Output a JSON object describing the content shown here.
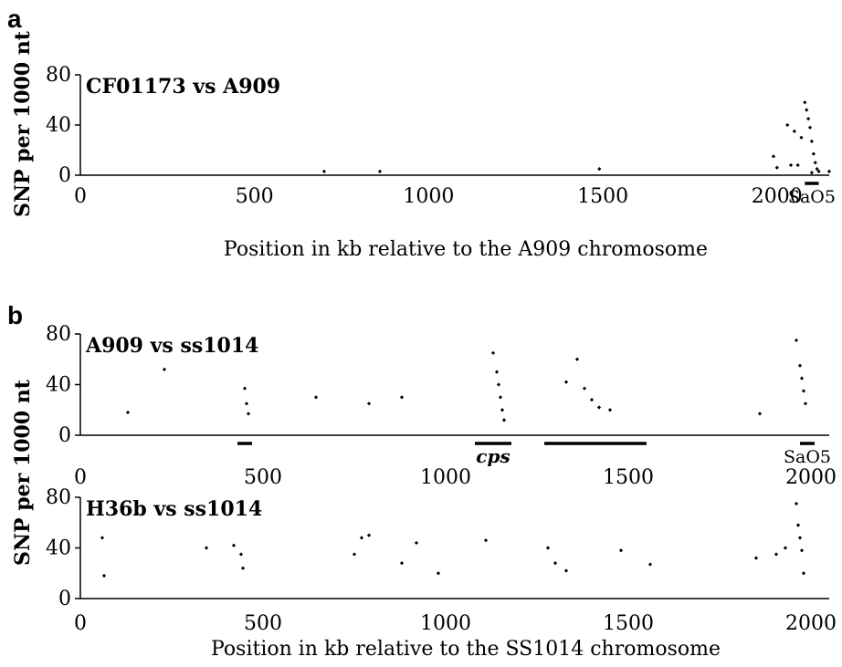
{
  "colors": {
    "axis": "#000000",
    "points": "#000000",
    "background": "#ffffff"
  },
  "figure": {
    "panels": [
      {
        "label": "a",
        "ylabel": "SNP per 1000 nt",
        "xlabel": "Position in kb relative to the A909 chromosome"
      },
      {
        "label": "b",
        "ylabel": "SNP per 1000 nt",
        "xlabel": "Position in kb relative to the SS1014 chromosome"
      }
    ]
  },
  "chart_data": [
    {
      "type": "scatter",
      "panel": "a",
      "title": "CF01173 vs A909",
      "xlabel": "Position in kb relative to the A909 chromosome",
      "ylabel": "SNP per 1000 nt",
      "xlim": [
        0,
        2150
      ],
      "ylim": [
        0,
        80
      ],
      "xticks": [
        0,
        500,
        1000,
        1500,
        2000
      ],
      "yticks": [
        0,
        40,
        80
      ],
      "grid": false,
      "regions": [
        {
          "label": "SaO5",
          "start": 2080,
          "end": 2120
        }
      ],
      "series": [
        {
          "x": [
            2030,
            2050,
            2060,
            2070,
            2080,
            2085,
            2090,
            2095,
            2100,
            2105,
            2110,
            2115,
            2120,
            1990,
            2000,
            2040,
            1490,
            700,
            860,
            2150,
            2100
          ],
          "y": [
            40,
            35,
            8,
            30,
            58,
            52,
            45,
            38,
            27,
            17,
            10,
            5,
            3,
            15,
            6,
            8,
            5,
            3,
            3,
            3,
            2
          ]
        }
      ]
    },
    {
      "type": "scatter",
      "panel": "b",
      "title": "A909 vs ss1014",
      "xlabel": "",
      "ylabel": "SNP per 1000 nt",
      "xlim": [
        0,
        2050
      ],
      "ylim": [
        0,
        80
      ],
      "xticks": [
        0,
        500,
        1000,
        1500,
        2000
      ],
      "yticks": [
        0,
        40,
        80
      ],
      "grid": false,
      "regions": [
        {
          "label": "",
          "start": 430,
          "end": 470
        },
        {
          "label": "cps",
          "start": 1080,
          "end": 1180
        },
        {
          "label": "",
          "start": 1270,
          "end": 1550
        },
        {
          "label": "SaO5",
          "start": 1970,
          "end": 2010
        }
      ],
      "series": [
        {
          "x": [
            130,
            230,
            450,
            455,
            460,
            645,
            790,
            880,
            1130,
            1140,
            1145,
            1150,
            1155,
            1160,
            1330,
            1360,
            1380,
            1400,
            1420,
            1450,
            1860,
            1960,
            1970,
            1975,
            1980,
            1985
          ],
          "y": [
            18,
            52,
            37,
            25,
            17,
            30,
            25,
            30,
            65,
            50,
            40,
            30,
            20,
            12,
            42,
            60,
            37,
            28,
            22,
            20,
            17,
            75,
            55,
            45,
            35,
            25
          ]
        }
      ]
    },
    {
      "type": "scatter",
      "panel": "b",
      "title": "H36b vs ss1014",
      "xlabel": "Position in kb relative to the SS1014 chromosome",
      "ylabel": "SNP per 1000 nt",
      "xlim": [
        0,
        2050
      ],
      "ylim": [
        0,
        80
      ],
      "xticks": [
        0,
        500,
        1000,
        1500,
        2000
      ],
      "yticks": [
        0,
        40,
        80
      ],
      "grid": false,
      "series": [
        {
          "x": [
            60,
            65,
            345,
            420,
            440,
            445,
            750,
            770,
            790,
            880,
            920,
            980,
            1110,
            1280,
            1300,
            1330,
            1480,
            1560,
            1850,
            1905,
            1930,
            1960,
            1965,
            1970,
            1975,
            1980
          ],
          "y": [
            48,
            18,
            40,
            42,
            35,
            24,
            35,
            48,
            50,
            28,
            44,
            20,
            46,
            40,
            28,
            22,
            38,
            27,
            32,
            35,
            40,
            75,
            58,
            48,
            38,
            20
          ]
        }
      ]
    }
  ]
}
